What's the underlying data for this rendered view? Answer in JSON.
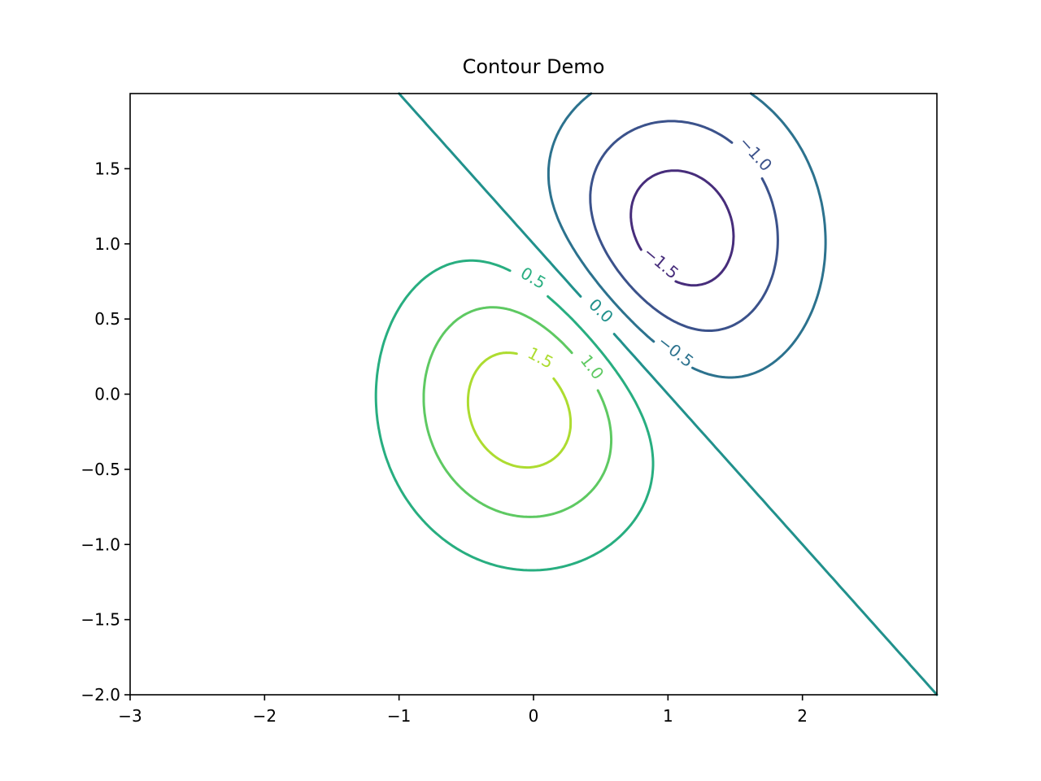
{
  "chart_data": {
    "type": "contour",
    "title": "Contour Demo",
    "xlabel": "",
    "ylabel": "",
    "xlim": [
      -3.0,
      3.0
    ],
    "ylim": [
      -2.0,
      2.0
    ],
    "x_ticks": [
      -3,
      -2,
      -1,
      0,
      1,
      2
    ],
    "x_tick_labels": [
      "−3",
      "−2",
      "−1",
      "0",
      "1",
      "2"
    ],
    "y_ticks": [
      -2.0,
      -1.5,
      -1.0,
      -0.5,
      0.0,
      0.5,
      1.0,
      1.5
    ],
    "y_tick_labels": [
      "−2.0",
      "−1.5",
      "−1.0",
      "−0.5",
      "0.0",
      "0.5",
      "1.0",
      "1.5"
    ],
    "grid": false,
    "colormap": "viridis",
    "function": "Z = exp(-X^2 - Y^2) - exp(-(X-1)^2 - (Y-1)^2), scaled by 2",
    "levels": [
      {
        "value": -1.5,
        "label": "−1.5",
        "color": "#472d7b"
      },
      {
        "value": -1.0,
        "label": "−1.0",
        "color": "#3b528b"
      },
      {
        "value": -0.5,
        "label": "−0.5",
        "color": "#2c728e"
      },
      {
        "value": 0.0,
        "label": "0.0",
        "color": "#21918c"
      },
      {
        "value": 0.5,
        "label": "0.5",
        "color": "#28ae80"
      },
      {
        "value": 1.0,
        "label": "1.0",
        "color": "#5ec962"
      },
      {
        "value": 1.5,
        "label": "1.5",
        "color": "#addc30"
      }
    ]
  }
}
